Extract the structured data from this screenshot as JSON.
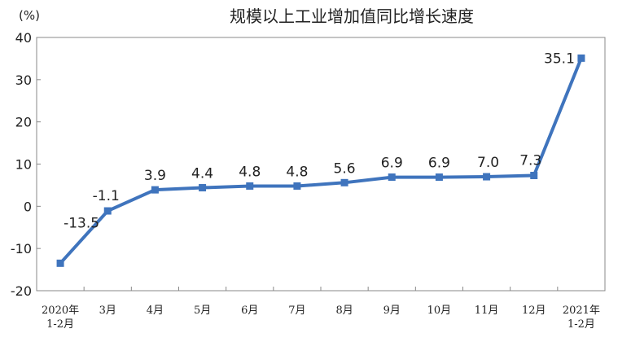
{
  "chart_data": {
    "type": "line",
    "title": "规模以上工业增加值同比增长速度",
    "ylabel": "(%)",
    "xlabel": "",
    "ylim": [
      -20,
      40
    ],
    "yticks": [
      "40",
      "30",
      "20",
      "10",
      "0",
      "-10",
      "-20"
    ],
    "ytick_values": [
      40,
      30,
      20,
      10,
      0,
      -10,
      -20
    ],
    "categories": [
      [
        "2020年",
        "1-2月"
      ],
      [
        "3月"
      ],
      [
        "4月"
      ],
      [
        "5月"
      ],
      [
        "6月"
      ],
      [
        "7月"
      ],
      [
        "8月"
      ],
      [
        "9月"
      ],
      [
        "10月"
      ],
      [
        "11月"
      ],
      [
        "12月"
      ],
      [
        "2021年",
        "1-2月"
      ]
    ],
    "values": [
      -13.5,
      -1.1,
      3.9,
      4.4,
      4.8,
      4.8,
      5.6,
      6.9,
      6.9,
      7.0,
      7.3,
      35.1
    ],
    "value_labels": [
      "-13.5",
      "-1.1",
      "3.9",
      "4.4",
      "4.8",
      "4.8",
      "5.6",
      "6.9",
      "6.9",
      "7.0",
      "7.3",
      "35.1"
    ],
    "color": "#3f74bd",
    "grid": false,
    "legend": "none"
  }
}
